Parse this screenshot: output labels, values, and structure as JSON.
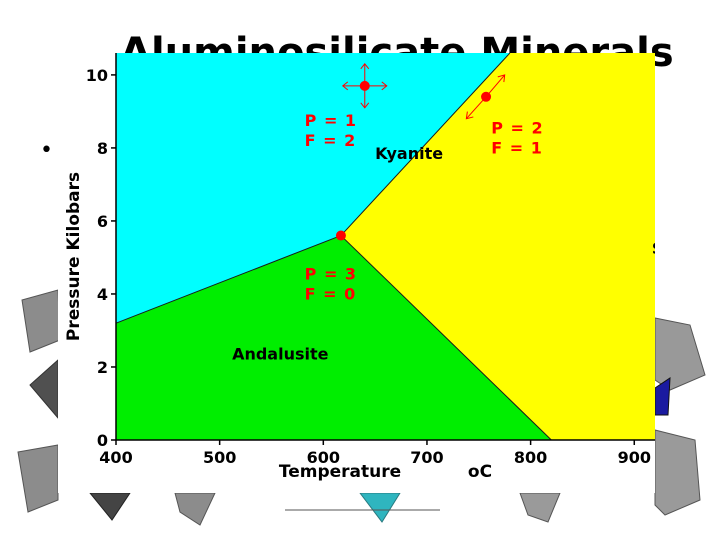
{
  "slide": {
    "title": "Aluminosilicate Minerals",
    "bullet": "•"
  },
  "colors": {
    "kyanite": "#00ffff",
    "sillimanite": "#ffff00",
    "andalusite": "#00ee00",
    "point": "#ff0000",
    "annotation": "#ff0000",
    "decor": "#8c8c8c"
  },
  "chart_data": {
    "type": "phase-diagram",
    "title": "",
    "xlabel": "Temperature",
    "x_unit_label": "oC",
    "ylabel": "Pressure Kilobars",
    "xlim": [
      400,
      920
    ],
    "ylim": [
      0,
      10.6
    ],
    "xticks": [
      400,
      500,
      600,
      700,
      800,
      900
    ],
    "yticks": [
      0,
      2,
      4,
      6,
      8,
      10
    ],
    "grid": false,
    "triple_point": {
      "x": 617,
      "y": 5.6
    },
    "boundaries": [
      {
        "name": "kyanite-andalusite",
        "points": [
          [
            400,
            3.2
          ],
          [
            617,
            5.6
          ]
        ]
      },
      {
        "name": "andalusite-sillimanite",
        "points": [
          [
            617,
            5.6
          ],
          [
            820,
            0
          ]
        ]
      },
      {
        "name": "kyanite-sillimanite",
        "points": [
          [
            617,
            5.6
          ],
          [
            780,
            10.6
          ]
        ]
      }
    ],
    "regions": [
      {
        "name": "Kyanite",
        "color_key": "kyanite",
        "label_at": [
          650,
          7.7
        ],
        "polygon": [
          [
            400,
            3.2
          ],
          [
            617,
            5.6
          ],
          [
            780,
            10.6
          ],
          [
            400,
            10.6
          ]
        ]
      },
      {
        "name": "Sillimanite",
        "color_key": "sillimanite",
        "label_at": [
          917,
          5.1
        ],
        "polygon": [
          [
            617,
            5.6
          ],
          [
            820,
            0
          ],
          [
            920,
            0
          ],
          [
            920,
            10.6
          ],
          [
            780,
            10.6
          ]
        ]
      },
      {
        "name": "Andalusite",
        "color_key": "andalusite",
        "label_at": [
          512,
          2.2
        ],
        "polygon": [
          [
            400,
            0
          ],
          [
            820,
            0
          ],
          [
            617,
            5.6
          ],
          [
            400,
            3.2
          ]
        ]
      }
    ],
    "points": [
      {
        "x": 640,
        "y": 9.7,
        "label": [
          "P = 1",
          "F = 2"
        ],
        "label_at": [
          582,
          8.6
        ],
        "arrows": true
      },
      {
        "x": 757,
        "y": 9.4,
        "label": [
          "P = 2",
          "F = 1"
        ],
        "label_at": [
          762,
          8.4
        ],
        "arrows": false
      },
      {
        "x": 617,
        "y": 5.6,
        "label": [
          "P = 3",
          "F = 0"
        ],
        "label_at": [
          582,
          4.4
        ],
        "arrows": false
      }
    ],
    "arrows": [
      {
        "from": [
          757,
          9.4
        ],
        "to": [
          775,
          10.0
        ]
      },
      {
        "from": [
          757,
          9.4
        ],
        "to": [
          738,
          8.8
        ]
      }
    ]
  }
}
